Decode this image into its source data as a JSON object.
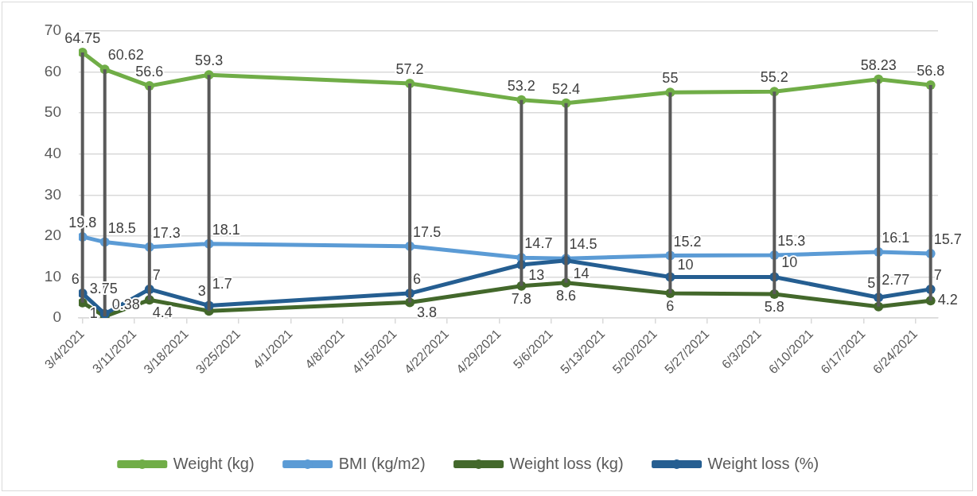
{
  "chart_data": {
    "type": "line",
    "x": [
      "2021-03-04",
      "2021-03-07",
      "2021-03-13",
      "2021-03-21",
      "2021-04-17",
      "2021-05-02",
      "2021-05-08",
      "2021-05-22",
      "2021-06-05",
      "2021-06-19",
      "2021-06-26"
    ],
    "xlim": [
      "2021-03-03T12:00",
      "2021-06-27"
    ],
    "xticks": [
      {
        "value": "2021-03-04",
        "label": "3/4/2021"
      },
      {
        "value": "2021-03-11",
        "label": "3/11/2021"
      },
      {
        "value": "2021-03-18",
        "label": "3/18/2021"
      },
      {
        "value": "2021-03-25",
        "label": "3/25/2021"
      },
      {
        "value": "2021-04-01",
        "label": "4/1/2021"
      },
      {
        "value": "2021-04-08",
        "label": "4/8/2021"
      },
      {
        "value": "2021-04-15",
        "label": "4/15/2021"
      },
      {
        "value": "2021-04-22",
        "label": "4/22/2021"
      },
      {
        "value": "2021-04-29",
        "label": "4/29/2021"
      },
      {
        "value": "2021-05-06",
        "label": "5/6/2021"
      },
      {
        "value": "2021-05-13",
        "label": "5/13/2021"
      },
      {
        "value": "2021-05-20",
        "label": "5/20/2021"
      },
      {
        "value": "2021-05-27",
        "label": "5/27/2021"
      },
      {
        "value": "2021-06-03",
        "label": "6/3/2021"
      },
      {
        "value": "2021-06-10",
        "label": "6/10/2021"
      },
      {
        "value": "2021-06-17",
        "label": "6/17/2021"
      },
      {
        "value": "2021-06-24",
        "label": "6/24/2021"
      }
    ],
    "ylim": [
      0,
      70
    ],
    "yticks": [
      0,
      10,
      20,
      30,
      40,
      50,
      60,
      70
    ],
    "grid": "y",
    "legend": "bottom",
    "marker": "circle",
    "line_style": "solid",
    "data_labels": true,
    "series": [
      {
        "name": "Weight (kg)",
        "color": "#70ad47",
        "values": [
          64.75,
          60.62,
          56.6,
          59.3,
          57.2,
          53.2,
          52.4,
          55,
          55.2,
          58.23,
          56.8
        ],
        "errors": [
          [
            3.75,
            64.75
          ],
          [
            0.38,
            60.62
          ],
          [
            4.4,
            56.6
          ],
          [
            1.7,
            59.3
          ],
          [
            3.8,
            57.2
          ],
          [
            7.8,
            53.2
          ],
          [
            8.6,
            52.4
          ],
          [
            6,
            55
          ],
          [
            5.8,
            55.2
          ],
          [
            2.77,
            58.23
          ],
          [
            4.2,
            56.8
          ]
        ]
      },
      {
        "name": "BMI (kg/m2)",
        "color": "#5b9bd5",
        "values": [
          19.8,
          18.5,
          17.3,
          18.1,
          17.5,
          14.7,
          14.5,
          15.2,
          15.3,
          16.1,
          15.7
        ]
      },
      {
        "name": "Weight loss (kg)",
        "color": "#43682b",
        "values": [
          3.75,
          0.38,
          4.4,
          1.7,
          3.8,
          7.8,
          8.6,
          6,
          5.8,
          2.77,
          4.2
        ]
      },
      {
        "name": "Weight loss (%)",
        "color": "#255e91",
        "values": [
          6,
          1,
          7,
          3,
          6,
          13,
          14,
          10,
          10,
          5,
          7
        ]
      }
    ]
  }
}
